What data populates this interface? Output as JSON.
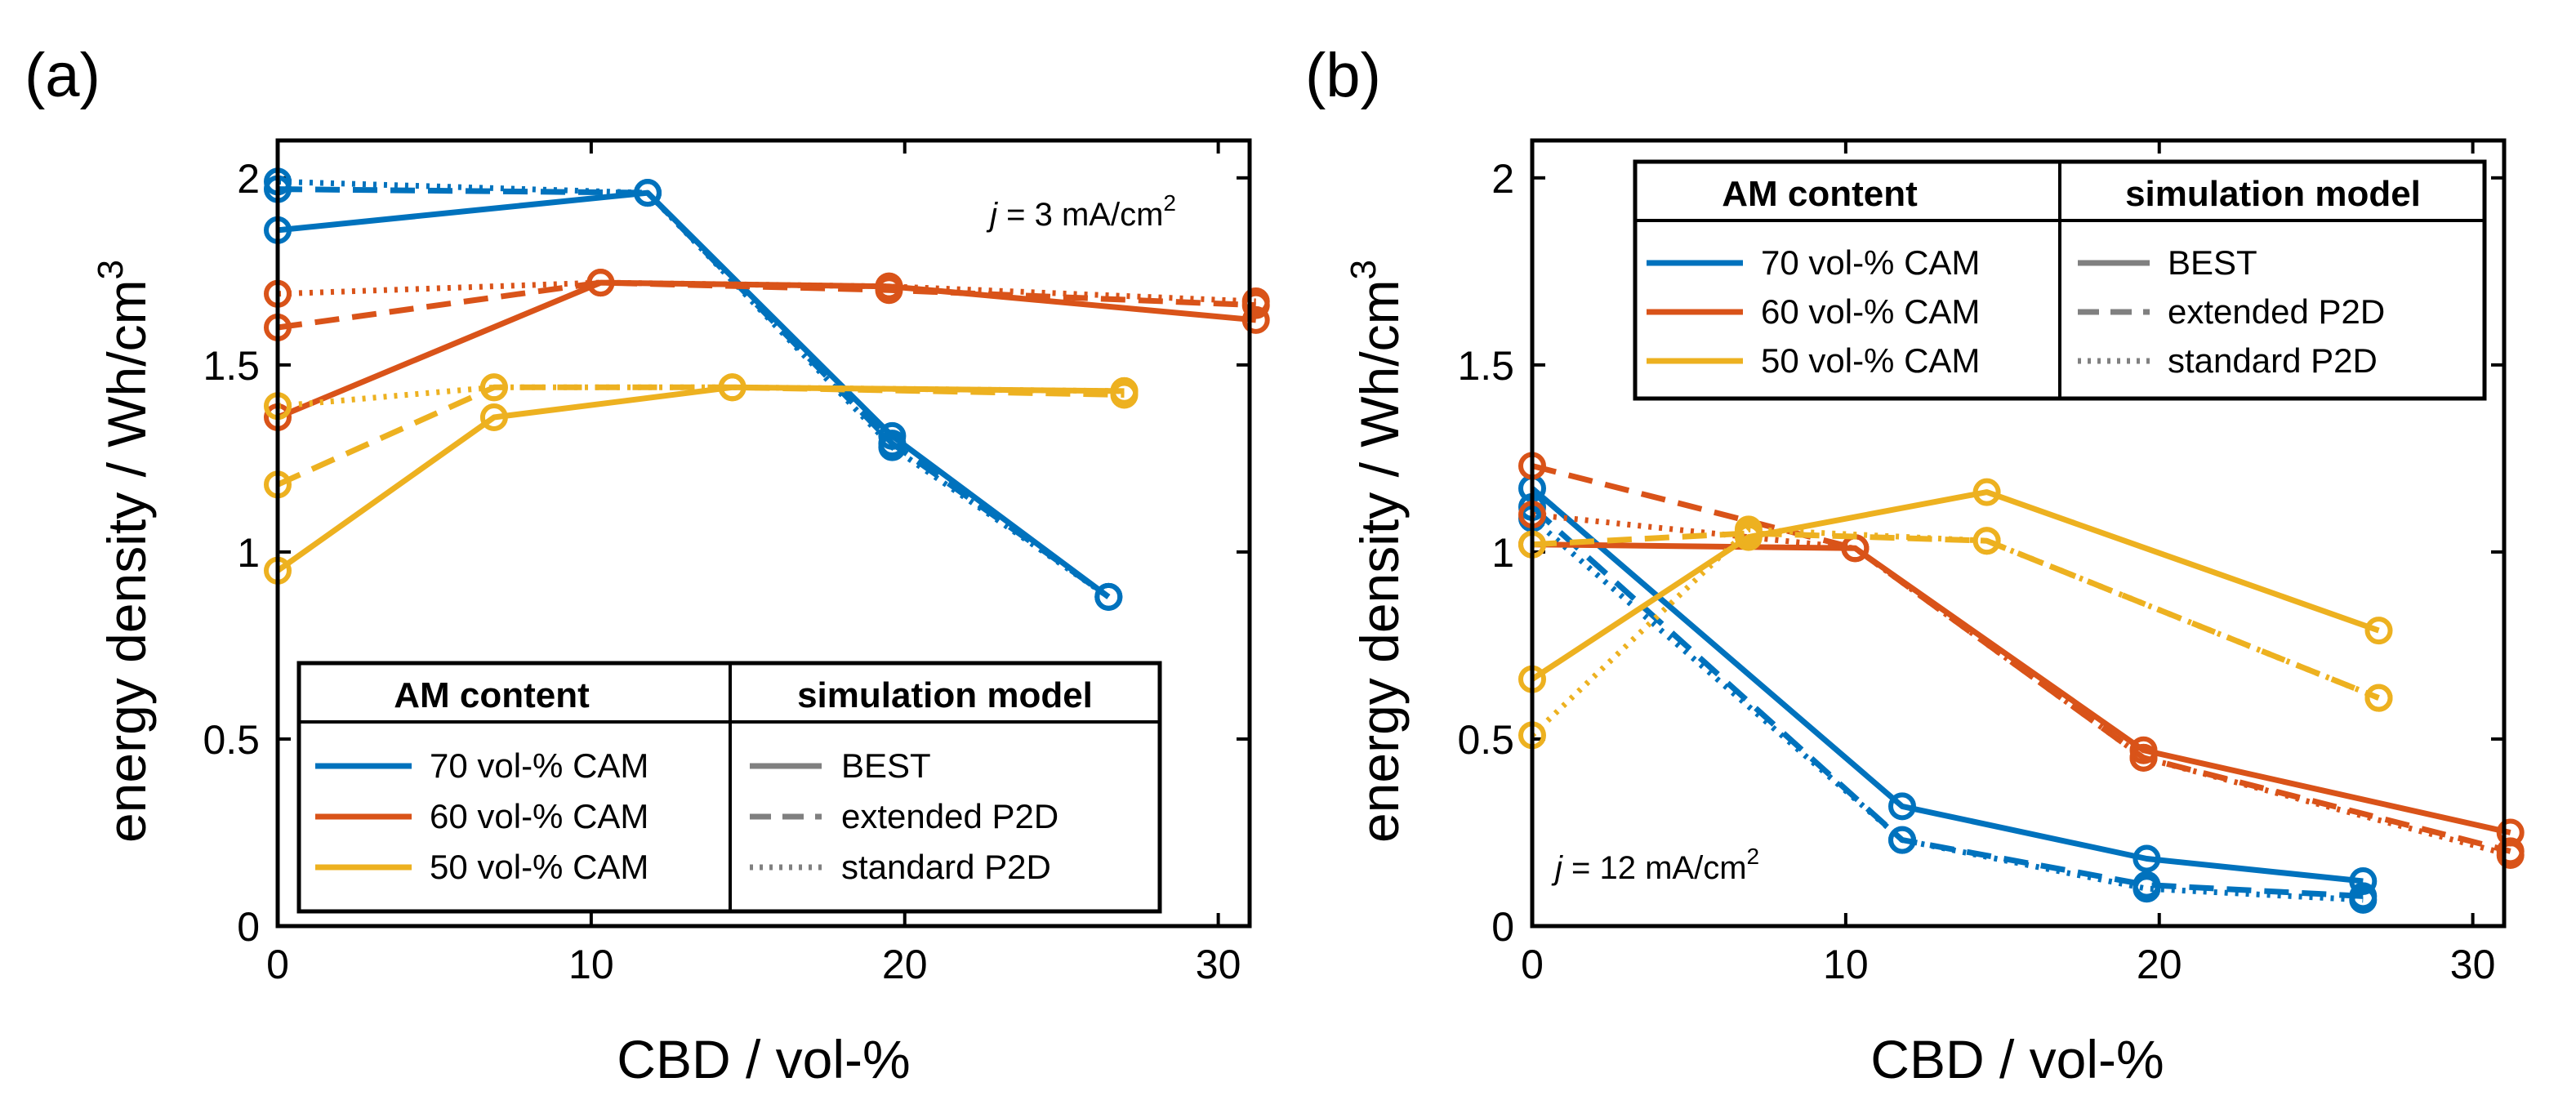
{
  "chart_data": [
    {
      "panel_label": "(a)",
      "type": "line",
      "xlabel": "CBD / vol-%",
      "ylabel": "energy density / Wh/cm",
      "ylabel_sup": "3",
      "xlim": [
        0,
        31
      ],
      "ylim": [
        0,
        2.1
      ],
      "xticks": [
        0,
        10,
        20,
        30
      ],
      "yticks": [
        0,
        0.5,
        1,
        1.5,
        2
      ],
      "xtick_labels": [
        "0",
        "10",
        "20",
        "30"
      ],
      "ytick_labels": [
        "0",
        "0.5",
        "1",
        "1.5",
        "2"
      ],
      "annotation": {
        "prefix": "j",
        "text": " = 3 mA/cm",
        "sup": "2",
        "placement": "top-right"
      },
      "legend": {
        "placement": "bottom-right",
        "header_left": "AM content",
        "header_right": "simulation model",
        "content_entries": [
          {
            "label": "70 vol-% CAM",
            "color": "#0072BD"
          },
          {
            "label": "60 vol-% CAM",
            "color": "#D95319"
          },
          {
            "label": "50 vol-% CAM",
            "color": "#EDB120"
          }
        ],
        "model_entries": [
          {
            "label": "BEST",
            "style": "solid"
          },
          {
            "label": "extended P2D",
            "style": "dashed"
          },
          {
            "label": "standard P2D",
            "style": "dotted"
          }
        ]
      },
      "series": [
        {
          "name": "70 vol-% CAM BEST",
          "content": "70 vol-% CAM",
          "model": "BEST",
          "color": "#0072BD",
          "style": "solid",
          "x": [
            0,
            11.8,
            19.6,
            26.5
          ],
          "y": [
            1.86,
            1.96,
            1.31,
            0.88
          ]
        },
        {
          "name": "70 vol-% CAM extended P2D",
          "content": "70 vol-% CAM",
          "model": "extended P2D",
          "color": "#0072BD",
          "style": "dashed",
          "x": [
            0,
            11.8,
            19.6,
            26.5
          ],
          "y": [
            1.97,
            1.96,
            1.29,
            0.88
          ]
        },
        {
          "name": "70 vol-% CAM standard P2D",
          "content": "70 vol-% CAM",
          "model": "standard P2D",
          "color": "#0072BD",
          "style": "dotted",
          "x": [
            0,
            11.8,
            19.6,
            26.5
          ],
          "y": [
            1.99,
            1.96,
            1.28,
            0.88
          ]
        },
        {
          "name": "60 vol-% CAM BEST",
          "content": "60 vol-% CAM",
          "model": "BEST",
          "color": "#D95319",
          "style": "solid",
          "x": [
            0,
            10.3,
            19.5,
            31.2
          ],
          "y": [
            1.36,
            1.72,
            1.71,
            1.62
          ]
        },
        {
          "name": "60 vol-% CAM extended P2D",
          "content": "60 vol-% CAM",
          "model": "extended P2D",
          "color": "#D95319",
          "style": "dashed",
          "x": [
            0,
            10.3,
            19.5,
            31.2
          ],
          "y": [
            1.6,
            1.72,
            1.7,
            1.66
          ]
        },
        {
          "name": "60 vol-% CAM standard P2D",
          "content": "60 vol-% CAM",
          "model": "standard P2D",
          "color": "#D95319",
          "style": "dotted",
          "x": [
            0,
            10.3,
            19.5,
            31.2
          ],
          "y": [
            1.69,
            1.72,
            1.71,
            1.67
          ]
        },
        {
          "name": "50 vol-% CAM BEST",
          "content": "50 vol-% CAM",
          "model": "BEST",
          "color": "#EDB120",
          "style": "solid",
          "x": [
            0,
            6.9,
            14.5,
            27.0
          ],
          "y": [
            0.95,
            1.36,
            1.44,
            1.43
          ]
        },
        {
          "name": "50 vol-% CAM extended P2D",
          "content": "50 vol-% CAM",
          "model": "extended P2D",
          "color": "#EDB120",
          "style": "dashed",
          "x": [
            0,
            6.9,
            14.5,
            27.0
          ],
          "y": [
            1.18,
            1.44,
            1.44,
            1.42
          ]
        },
        {
          "name": "50 vol-% CAM standard P2D",
          "content": "50 vol-% CAM",
          "model": "standard P2D",
          "color": "#EDB120",
          "style": "dotted",
          "x": [
            0,
            6.9,
            14.5,
            27.0
          ],
          "y": [
            1.39,
            1.44,
            1.44,
            1.43
          ]
        }
      ]
    },
    {
      "panel_label": "(b)",
      "type": "line",
      "xlabel": "CBD / vol-%",
      "ylabel": "energy density / Wh/cm",
      "ylabel_sup": "3",
      "xlim": [
        0,
        31
      ],
      "ylim": [
        0,
        2.1
      ],
      "xticks": [
        0,
        10,
        20,
        30
      ],
      "yticks": [
        0,
        0.5,
        1,
        1.5,
        2
      ],
      "xtick_labels": [
        "0",
        "10",
        "20",
        "30"
      ],
      "ytick_labels": [
        "0",
        "0.5",
        "1",
        "1.5",
        "2"
      ],
      "annotation": {
        "prefix": "j",
        "text": " = 12 mA/cm",
        "sup": "2",
        "placement": "bottom-left"
      },
      "legend": {
        "placement": "top-right",
        "header_left": "AM content",
        "header_right": "simulation model",
        "content_entries": [
          {
            "label": "70 vol-% CAM",
            "color": "#0072BD"
          },
          {
            "label": "60 vol-% CAM",
            "color": "#D95319"
          },
          {
            "label": "50 vol-% CAM",
            "color": "#EDB120"
          }
        ],
        "model_entries": [
          {
            "label": "BEST",
            "style": "solid"
          },
          {
            "label": "extended P2D",
            "style": "dashed"
          },
          {
            "label": "standard P2D",
            "style": "dotted"
          }
        ]
      },
      "series": [
        {
          "name": "70 vol-% CAM BEST",
          "content": "70 vol-% CAM",
          "model": "BEST",
          "color": "#0072BD",
          "style": "solid",
          "x": [
            0,
            11.8,
            19.6,
            26.5
          ],
          "y": [
            1.17,
            0.32,
            0.18,
            0.12
          ]
        },
        {
          "name": "70 vol-% CAM extended P2D",
          "content": "70 vol-% CAM",
          "model": "extended P2D",
          "color": "#0072BD",
          "style": "dashed",
          "x": [
            0,
            11.8,
            19.6,
            26.5
          ],
          "y": [
            1.12,
            0.23,
            0.11,
            0.08
          ]
        },
        {
          "name": "70 vol-% CAM standard P2D",
          "content": "70 vol-% CAM",
          "model": "standard P2D",
          "color": "#0072BD",
          "style": "dotted",
          "x": [
            0,
            11.8,
            19.6,
            26.5
          ],
          "y": [
            1.09,
            0.23,
            0.1,
            0.07
          ]
        },
        {
          "name": "60 vol-% CAM BEST",
          "content": "60 vol-% CAM",
          "model": "BEST",
          "color": "#D95319",
          "style": "solid",
          "x": [
            0,
            10.3,
            19.5,
            31.2
          ],
          "y": [
            1.02,
            1.01,
            0.47,
            0.25
          ]
        },
        {
          "name": "60 vol-% CAM extended P2D",
          "content": "60 vol-% CAM",
          "model": "extended P2D",
          "color": "#D95319",
          "style": "dashed",
          "x": [
            0,
            10.3,
            19.5,
            31.2
          ],
          "y": [
            1.23,
            1.01,
            0.45,
            0.2
          ]
        },
        {
          "name": "60 vol-% CAM standard P2D",
          "content": "60 vol-% CAM",
          "model": "standard P2D",
          "color": "#D95319",
          "style": "dotted",
          "x": [
            0,
            10.3,
            19.5,
            31.2
          ],
          "y": [
            1.1,
            1.01,
            0.45,
            0.19
          ]
        },
        {
          "name": "50 vol-% CAM BEST",
          "content": "50 vol-% CAM",
          "model": "BEST",
          "color": "#EDB120",
          "style": "solid",
          "x": [
            0,
            6.9,
            14.5,
            27.0
          ],
          "y": [
            0.66,
            1.04,
            1.16,
            0.79
          ]
        },
        {
          "name": "50 vol-% CAM extended P2D",
          "content": "50 vol-% CAM",
          "model": "extended P2D",
          "color": "#EDB120",
          "style": "dashed",
          "x": [
            0,
            6.9,
            14.5,
            27.0
          ],
          "y": [
            1.02,
            1.05,
            1.03,
            0.61
          ]
        },
        {
          "name": "50 vol-% CAM standard P2D",
          "content": "50 vol-% CAM",
          "model": "standard P2D",
          "color": "#EDB120",
          "style": "dotted",
          "x": [
            0,
            6.9,
            14.5,
            27.0
          ],
          "y": [
            0.51,
            1.06,
            1.03,
            0.61
          ]
        }
      ]
    }
  ]
}
